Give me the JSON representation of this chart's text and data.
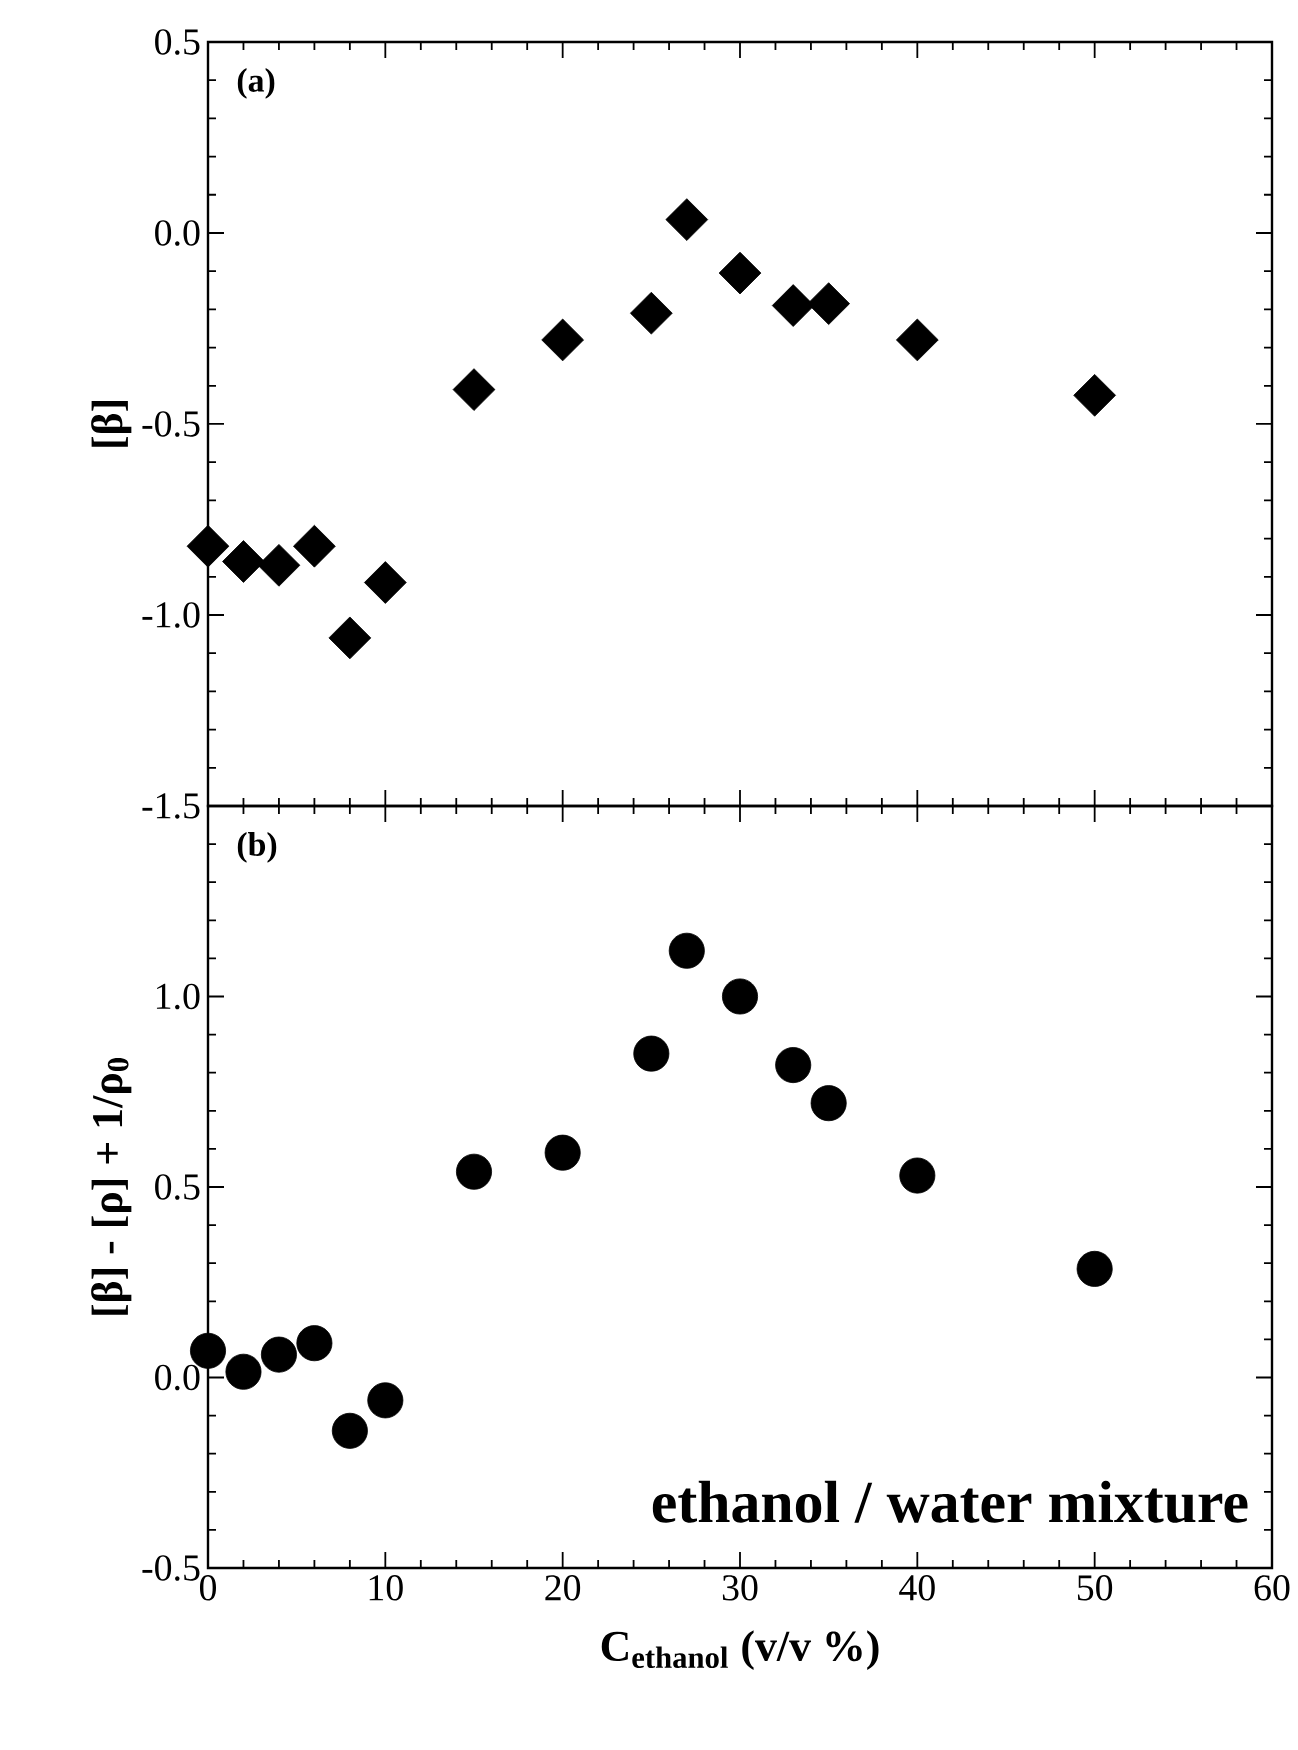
{
  "chart_data": [
    {
      "type": "scatter",
      "x": [
        0,
        2,
        4,
        6,
        8,
        10,
        15,
        20,
        25,
        27,
        30,
        33,
        35,
        40,
        50
      ],
      "series": [
        {
          "color": "#000000",
          "values": [
            -0.82,
            -0.86,
            -0.87,
            -0.82,
            -1.06,
            -0.915,
            -0.41,
            -0.28,
            -0.21,
            0.035,
            -0.105,
            -0.19,
            -0.185,
            -0.28,
            -0.425
          ]
        }
      ],
      "ylabel": "[β]",
      "marker": "diamond",
      "xlim": [
        0,
        60
      ],
      "xticks": [
        0,
        10,
        20,
        30,
        40,
        50,
        60
      ],
      "ylim": [
        -1.5,
        0.5
      ],
      "yticks": [
        {
          "value": -1.5,
          "label": "-1.5"
        },
        {
          "value": -1.0,
          "label": "-1.0"
        },
        {
          "value": -0.5,
          "label": "-0.5"
        },
        {
          "value": 0.0,
          "label": "0.0"
        },
        0.5
      ],
      "tick_labels": "y",
      "annotations": [
        "(a)"
      ]
    },
    {
      "type": "scatter",
      "x": [
        0,
        2,
        4,
        6,
        8,
        10,
        15,
        20,
        25,
        27,
        30,
        33,
        35,
        40,
        50
      ],
      "series": [
        {
          "color": "#000000",
          "values": [
            0.07,
            0.015,
            0.06,
            0.09,
            -0.14,
            -0.06,
            0.54,
            0.59,
            0.85,
            1.12,
            1.0,
            0.82,
            0.72,
            0.53,
            0.285
          ]
        }
      ],
      "xlabel": "C$_{ethanol}$ (v/v %)",
      "ylabel": "[β] - [ρ] + 1/ρ$_{0}$",
      "marker": "circle",
      "xlim": [
        0,
        60
      ],
      "xticks": [
        0,
        10,
        20,
        30,
        40,
        50,
        60
      ],
      "ylim": [
        -0.5,
        1.5
      ],
      "yticks": [
        {
          "value": -0.5,
          "label": "-0.5"
        },
        {
          "value": 0.0,
          "label": "0.0"
        },
        0.5,
        {
          "value": 1.0,
          "label": "1.0"
        },
        {
          "value": 1.5,
          "label": null
        }
      ],
      "annotations": [
        "(b)",
        "ethanol / water mixture"
      ]
    }
  ]
}
